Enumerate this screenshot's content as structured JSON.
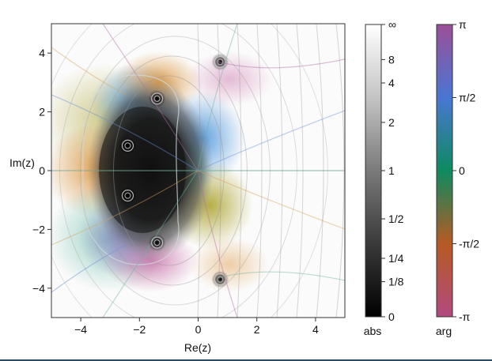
{
  "chart_data": {
    "type": "heatmap",
    "plot": "domain coloring of a complex function",
    "xlabel": "Re(z)",
    "ylabel": "Im(z)",
    "xlim": [
      -5,
      5
    ],
    "ylim": [
      -5,
      5
    ],
    "x_ticks": [
      "−4",
      "−2",
      "0",
      "2",
      "4"
    ],
    "y_ticks": [
      "−4",
      "−2",
      "0",
      "2",
      "4"
    ],
    "x_tick_values": [
      -4,
      -2,
      0,
      2,
      4
    ],
    "y_tick_values": [
      -4,
      -2,
      0,
      2,
      4
    ],
    "zeros": [
      {
        "re": -2.4,
        "im": 0.85
      },
      {
        "re": -2.4,
        "im": -0.85
      },
      {
        "re": -1.4,
        "im": 2.45
      },
      {
        "re": -1.4,
        "im": -2.45
      },
      {
        "re": 0.75,
        "im": 3.7
      },
      {
        "re": 0.75,
        "im": -3.7
      }
    ],
    "abs_colorbar": {
      "label": "abs",
      "tick_labels": [
        "∞",
        "8",
        "4",
        "2",
        "1",
        "1/2",
        "1/4",
        "1/8",
        "0"
      ],
      "tick_values": [
        null,
        8,
        4,
        2,
        1,
        0.5,
        0.25,
        0.125,
        0
      ]
    },
    "arg_colorbar": {
      "label": "arg",
      "tick_labels": [
        "π",
        "π/2",
        "0",
        "-π/2",
        "-π"
      ],
      "colors": [
        "#9b4f96",
        "#4a76d3",
        "#0d8a60",
        "#6f7b10",
        "#b65a23",
        "#b14a7f"
      ]
    }
  }
}
